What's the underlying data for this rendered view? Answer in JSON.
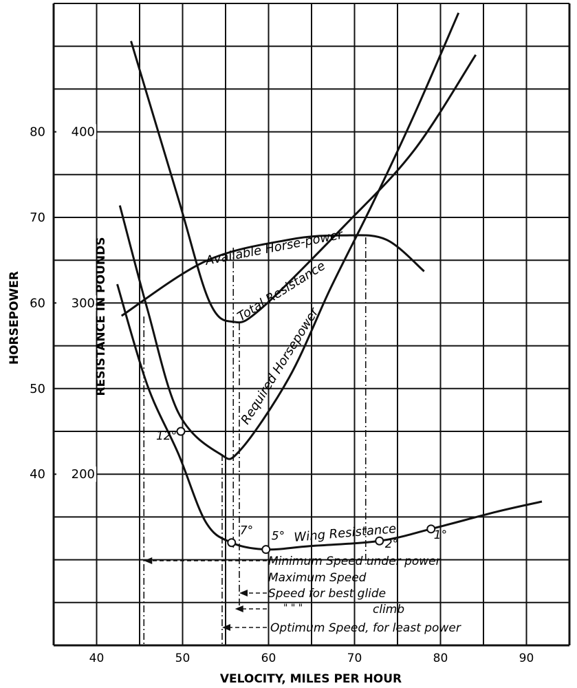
{
  "chart_data": {
    "type": "line",
    "title": "",
    "xlabel": "VELOCITY, MILES PER HOUR",
    "ylabel_left": "HORSEPOWER",
    "ylabel_right_inner": "RESISTANCE IN POUNDS",
    "xlim": [
      35,
      95
    ],
    "ylim_horsepower": [
      20,
      95
    ],
    "ylim_resistance": [
      100,
      475
    ],
    "grid": true,
    "x_ticks": [
      40,
      50,
      60,
      70,
      80,
      90
    ],
    "horsepower_ticks": [
      40,
      50,
      60,
      70,
      80
    ],
    "resistance_ticks": [
      200,
      300,
      400
    ],
    "series": [
      {
        "name": "Available Horse-power",
        "axis": "horsepower",
        "x": [
          42.9,
          52.7,
          62.4,
          68.8,
          73.7,
          78.1
        ],
        "y": [
          58.5,
          64.9,
          67.4,
          67.9,
          67.4,
          63.7
        ]
      },
      {
        "name": "Total Resistance",
        "axis": "resistance",
        "x": [
          44.0,
          49.5,
          53.1,
          55.9,
          59.2,
          68.8,
          76.9,
          84.1
        ],
        "y": [
          453,
          361,
          301,
          289,
          297,
          345,
          389,
          445
        ]
      },
      {
        "name": "Required Horsepower",
        "axis": "horsepower",
        "x": [
          42.7,
          45.9,
          49.5,
          54.3,
          56.7,
          62.4,
          67.2,
          72.0,
          76.9,
          82.1
        ],
        "y": [
          71.4,
          59.3,
          47.2,
          42.4,
          42.8,
          51.3,
          61.7,
          71.4,
          81.9,
          93.9
        ]
      },
      {
        "name": "Wing Resistance",
        "axis": "resistance",
        "x": [
          42.4,
          45.9,
          49.5,
          52.7,
          55.7,
          59.7,
          64.8,
          72.9,
          78.9,
          86.5,
          91.8
        ],
        "y": [
          311,
          252,
          212,
          172,
          160,
          156,
          158,
          161,
          168,
          178,
          184
        ]
      }
    ],
    "angle_markers": [
      {
        "label": "12°",
        "x": 49.8,
        "resistance": 225
      },
      {
        "label": "7°",
        "x": 55.7,
        "resistance": 160
      },
      {
        "label": "5°",
        "x": 59.7,
        "resistance": 156
      },
      {
        "label": "2°",
        "x": 72.9,
        "resistance": 161
      },
      {
        "label": "1°",
        "x": 78.9,
        "resistance": 168
      }
    ],
    "annotations": [
      "Minimum Speed under power",
      "Maximum Speed",
      "Speed for best glide",
      "\"      \"      \"",
      "climb",
      "Optimum Speed, for least power"
    ]
  }
}
